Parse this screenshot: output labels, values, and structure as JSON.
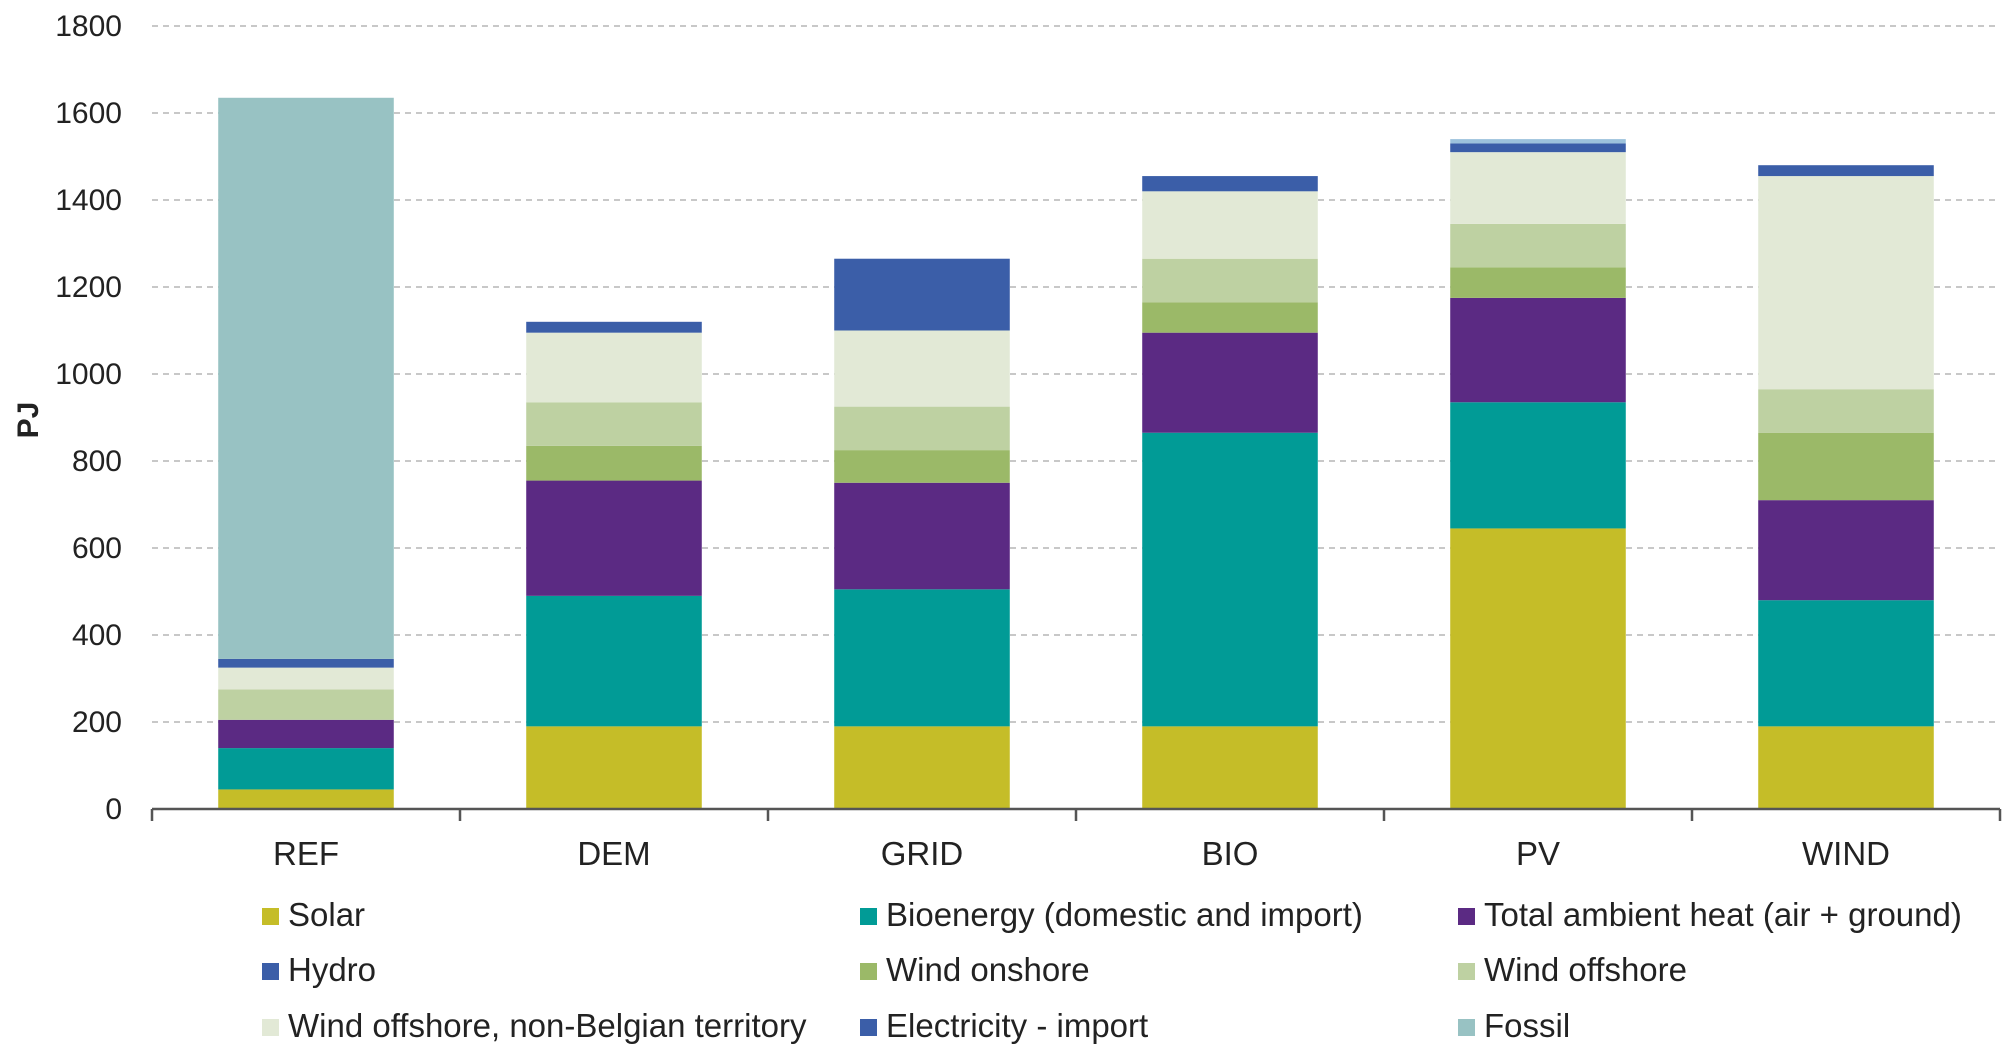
{
  "chart_data": {
    "type": "bar",
    "stacked": true,
    "ylabel": "PJ",
    "xlabel": "",
    "ylim": [
      0,
      1800
    ],
    "yticks": [
      "0",
      "200",
      "400",
      "600",
      "800",
      "1000",
      "1200",
      "1400",
      "1600",
      "1800"
    ],
    "grid": true,
    "legend_position": "bottom",
    "categories": [
      "REF",
      "DEM",
      "GRID",
      "BIO",
      "PV",
      "WIND"
    ],
    "series": [
      {
        "name": "Solar",
        "color": "#c5bd28",
        "values": [
          45,
          190,
          190,
          190,
          645,
          190
        ]
      },
      {
        "name": "Bioenergy (domestic and import)",
        "color": "#019b96",
        "values": [
          95,
          300,
          315,
          675,
          290,
          290
        ]
      },
      {
        "name": "Total ambient heat (air + ground)",
        "color": "#5b2a83",
        "values": [
          65,
          265,
          245,
          230,
          240,
          230
        ]
      },
      {
        "name": "Hydro",
        "color": "#3b5ea8",
        "values": [
          0,
          0,
          0,
          0,
          0,
          0
        ]
      },
      {
        "name": "Wind onshore",
        "color": "#9bb968",
        "values": [
          0,
          80,
          75,
          70,
          70,
          155
        ]
      },
      {
        "name": "Wind offshore",
        "color": "#bed1a2",
        "values": [
          70,
          100,
          100,
          100,
          100,
          100
        ]
      },
      {
        "name": "Wind offshore, non-Belgian territory",
        "color": "#e2e9d6",
        "values": [
          50,
          160,
          175,
          155,
          165,
          490
        ]
      },
      {
        "name": "Electricity - import",
        "color": "#3b5ea8",
        "values": [
          20,
          25,
          165,
          35,
          20,
          25
        ]
      },
      {
        "name": "Fossil",
        "color": "#98c2c3",
        "values": [
          1290,
          0,
          0,
          0,
          0,
          0
        ]
      }
    ],
    "pv_top_line": {
      "category": "PV",
      "color": "#9dc2dc",
      "value": 10
    }
  }
}
